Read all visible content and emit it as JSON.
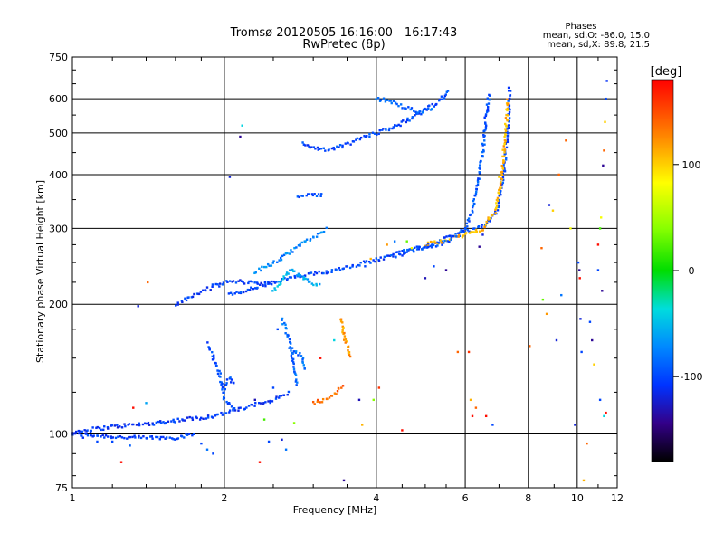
{
  "chart_data": {
    "type": "scatter",
    "title": "Tromsø 20120505 16:16:00—16:17:43",
    "subtitle": "RwPretec (8p)",
    "xlabel": "Frequency [MHz]",
    "ylabel": "Stationary phase Virtual Height [km]",
    "x_scale": "log",
    "y_scale": "log",
    "xlim": [
      1,
      12
    ],
    "ylim": [
      75,
      750
    ],
    "x_ticks": [
      "1",
      "2",
      "4",
      "6",
      "8",
      "10",
      "12"
    ],
    "y_ticks": [
      "75",
      "100",
      "200",
      "300",
      "400",
      "500",
      "600",
      "750"
    ],
    "grid": true,
    "phases": {
      "title": "Phases",
      "line1": "mean, sd,O: -86.0, 15.0",
      "line2": "mean, sd,X: 89.8, 21.5"
    },
    "colorbar": {
      "label": "[deg]",
      "range": [
        -180,
        180
      ],
      "ticks": [
        "100",
        "0",
        "-100"
      ]
    },
    "traces": [
      {
        "segments": [
          [
            [
              1.0,
              100
            ],
            [
              1.3,
              98
            ],
            [
              1.6,
              98
            ],
            [
              1.75,
              100
            ]
          ]
        ],
        "phase": -105
      },
      {
        "segments": [
          [
            [
              1.0,
              101
            ],
            [
              1.2,
              104
            ],
            [
              1.45,
              106
            ],
            [
              1.55,
              107
            ]
          ]
        ],
        "phase": -110
      },
      {
        "segments": [
          [
            [
              1.55,
              107
            ],
            [
              1.9,
              110
            ],
            [
              2.2,
              115
            ],
            [
              2.5,
              120
            ],
            [
              2.7,
              125
            ]
          ]
        ],
        "phase": -105
      },
      {
        "segments": [
          [
            [
              1.85,
              162
            ],
            [
              1.95,
              140
            ],
            [
              2.0,
              120
            ],
            [
              2.1,
              115
            ]
          ],
          [
            [
              2.0,
              128
            ],
            [
              2.05,
              135
            ],
            [
              2.1,
              130
            ]
          ]
        ],
        "phase": -100
      },
      {
        "segments": [
          [
            [
              2.6,
              185
            ],
            [
              2.7,
              165
            ],
            [
              2.75,
              140
            ],
            [
              2.8,
              130
            ]
          ],
          [
            [
              2.7,
              158
            ],
            [
              2.85,
              152
            ],
            [
              2.9,
              140
            ]
          ]
        ],
        "phase": -85
      },
      {
        "segments": [
          [
            [
              1.6,
              200
            ],
            [
              1.75,
              210
            ],
            [
              1.9,
              220
            ],
            [
              2.05,
              226
            ],
            [
              2.3,
              225
            ],
            [
              2.5,
              222
            ]
          ]
        ],
        "phase": -105
      },
      {
        "segments": [
          [
            [
              2.05,
              210
            ],
            [
              2.2,
              215
            ],
            [
              2.5,
              225
            ],
            [
              2.7,
              230
            ],
            [
              3.2,
              238
            ],
            [
              3.8,
              250
            ],
            [
              4.5,
              262
            ],
            [
              5.0,
              272
            ],
            [
              5.4,
              282
            ],
            [
              5.8,
              290
            ],
            [
              6.2,
              298
            ],
            [
              6.6,
              305
            ],
            [
              6.95,
              330
            ],
            [
              7.15,
              400
            ],
            [
              7.3,
              520
            ],
            [
              7.35,
              640
            ]
          ]
        ],
        "phase": -100
      },
      {
        "segments": [
          [
            [
              5.0,
              275
            ],
            [
              5.5,
              282
            ],
            [
              6.0,
              290
            ],
            [
              6.5,
              300
            ],
            [
              6.9,
              330
            ],
            [
              7.1,
              400
            ],
            [
              7.2,
              500
            ],
            [
              7.3,
              600
            ]
          ]
        ],
        "phase": 110
      },
      {
        "segments": [
          [
            [
              4.3,
              262
            ],
            [
              4.8,
              270
            ],
            [
              5.3,
              275
            ],
            [
              5.7,
              285
            ],
            [
              6.0,
              300
            ],
            [
              6.2,
              330
            ],
            [
              6.35,
              380
            ],
            [
              6.5,
              450
            ],
            [
              6.6,
              550
            ],
            [
              6.7,
              620
            ]
          ]
        ],
        "phase": -95
      },
      {
        "segments": [
          [
            [
              2.3,
              238
            ],
            [
              2.6,
              255
            ],
            [
              2.9,
              280
            ],
            [
              3.2,
              300
            ]
          ]
        ],
        "phase": -75
      },
      {
        "segments": [
          [
            [
              2.5,
              215
            ],
            [
              2.7,
              240
            ],
            [
              2.9,
              228
            ],
            [
              3.1,
              220
            ]
          ]
        ],
        "phase": -55
      },
      {
        "segments": [
          [
            [
              2.85,
              472
            ],
            [
              3.0,
              460
            ],
            [
              3.2,
              455
            ],
            [
              3.5,
              470
            ],
            [
              3.8,
              490
            ],
            [
              4.1,
              505
            ],
            [
              4.4,
              520
            ],
            [
              4.7,
              540
            ],
            [
              5.0,
              565
            ],
            [
              5.3,
              590
            ],
            [
              5.6,
              625
            ]
          ]
        ],
        "phase": -100
      },
      {
        "segments": [
          [
            [
              4.0,
              600
            ],
            [
              4.3,
              590
            ],
            [
              4.6,
              570
            ],
            [
              4.9,
              560
            ],
            [
              5.2,
              575
            ]
          ]
        ],
        "phase": -85
      },
      {
        "segments": [
          [
            [
              2.8,
              355
            ],
            [
              3.0,
              358
            ],
            [
              3.15,
              360
            ]
          ]
        ],
        "phase": -100
      },
      {
        "segments": [
          [
            [
              3.0,
              118
            ],
            [
              3.15,
              120
            ],
            [
              3.3,
              124
            ],
            [
              3.45,
              130
            ]
          ]
        ],
        "phase": 140
      },
      {
        "segments": [
          [
            [
              3.4,
              185
            ],
            [
              3.45,
              170
            ],
            [
              3.5,
              160
            ],
            [
              3.55,
              150
            ]
          ]
        ],
        "phase": 120
      }
    ],
    "scatter": [
      [
        1.05,
        98,
        -110
      ],
      [
        1.12,
        96,
        -100
      ],
      [
        1.2,
        96,
        -100
      ],
      [
        1.3,
        94,
        -90
      ],
      [
        1.32,
        115,
        175
      ],
      [
        1.4,
        118,
        -60
      ],
      [
        1.41,
        225,
        140
      ],
      [
        1.35,
        198,
        -120
      ],
      [
        1.5,
        106,
        -95
      ],
      [
        1.45,
        105,
        -100
      ],
      [
        1.25,
        86,
        175
      ],
      [
        1.8,
        95,
        -100
      ],
      [
        1.85,
        92,
        -80
      ],
      [
        1.9,
        90,
        -100
      ],
      [
        2.05,
        395,
        -120
      ],
      [
        2.15,
        490,
        -140
      ],
      [
        2.17,
        520,
        -40
      ],
      [
        2.3,
        120,
        -130
      ],
      [
        2.4,
        108,
        20
      ],
      [
        2.45,
        96,
        -100
      ],
      [
        2.5,
        128,
        -100
      ],
      [
        2.35,
        86,
        175
      ],
      [
        2.6,
        97,
        -120
      ],
      [
        2.65,
        92,
        -80
      ],
      [
        2.75,
        106,
        40
      ],
      [
        2.55,
        175,
        -100
      ],
      [
        3.1,
        150,
        175
      ],
      [
        3.3,
        165,
        -40
      ],
      [
        3.45,
        78,
        -140
      ],
      [
        3.75,
        105,
        110
      ],
      [
        3.7,
        120,
        -130
      ],
      [
        3.8,
        245,
        -100
      ],
      [
        3.9,
        255,
        110
      ],
      [
        3.95,
        120,
        40
      ],
      [
        4.05,
        128,
        160
      ],
      [
        4.2,
        275,
        120
      ],
      [
        4.35,
        280,
        -80
      ],
      [
        4.5,
        102,
        175
      ],
      [
        4.6,
        280,
        30
      ],
      [
        4.7,
        270,
        80
      ],
      [
        5.0,
        230,
        -130
      ],
      [
        5.5,
        240,
        -140
      ],
      [
        5.2,
        245,
        -100
      ],
      [
        5.8,
        155,
        140
      ],
      [
        6.1,
        155,
        160
      ],
      [
        6.15,
        120,
        110
      ],
      [
        6.2,
        110,
        175
      ],
      [
        6.3,
        115,
        140
      ],
      [
        6.6,
        110,
        175
      ],
      [
        6.8,
        105,
        -100
      ],
      [
        6.4,
        272,
        -140
      ],
      [
        6.5,
        290,
        -120
      ],
      [
        7.0,
        395,
        100
      ],
      [
        7.05,
        380,
        140
      ],
      [
        8.05,
        160,
        140
      ],
      [
        8.5,
        270,
        140
      ],
      [
        8.55,
        205,
        30
      ],
      [
        8.7,
        190,
        120
      ],
      [
        8.8,
        340,
        -120
      ],
      [
        8.95,
        330,
        100
      ],
      [
        9.1,
        165,
        -120
      ],
      [
        9.2,
        400,
        140
      ],
      [
        9.3,
        210,
        -80
      ],
      [
        9.5,
        480,
        140
      ],
      [
        9.7,
        300,
        80
      ],
      [
        9.9,
        105,
        -120
      ],
      [
        10.05,
        250,
        -100
      ],
      [
        10.1,
        240,
        -140
      ],
      [
        10.12,
        230,
        175
      ],
      [
        10.15,
        185,
        -120
      ],
      [
        10.2,
        155,
        -100
      ],
      [
        10.3,
        78,
        110
      ],
      [
        10.45,
        95,
        140
      ],
      [
        10.6,
        182,
        -100
      ],
      [
        10.7,
        165,
        -140
      ],
      [
        10.8,
        145,
        100
      ],
      [
        11.0,
        240,
        -100
      ],
      [
        11.0,
        275,
        175
      ],
      [
        11.1,
        300,
        20
      ],
      [
        11.15,
        318,
        80
      ],
      [
        11.2,
        215,
        -140
      ],
      [
        11.25,
        420,
        -140
      ],
      [
        11.3,
        455,
        140
      ],
      [
        11.35,
        530,
        100
      ],
      [
        11.4,
        600,
        -100
      ],
      [
        11.45,
        660,
        -110
      ],
      [
        11.1,
        120,
        -100
      ],
      [
        11.3,
        110,
        -40
      ],
      [
        11.4,
        112,
        175
      ]
    ]
  }
}
